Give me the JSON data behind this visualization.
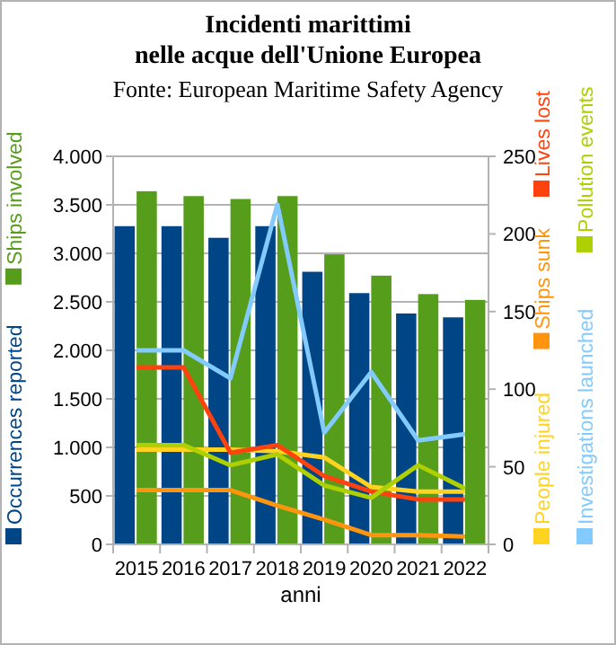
{
  "chart_data": {
    "type": "bar",
    "title": "Incidenti marittimi\nnelle acque dell'Unione Europea",
    "subtitle": "Fonte: European Maritime Safety Agency",
    "xlabel": "anni",
    "categories": [
      "2015",
      "2016",
      "2017",
      "2018",
      "2019",
      "2020",
      "2021",
      "2022"
    ],
    "series": [
      {
        "name": "Occurrences reported",
        "color": "#004586",
        "values": [
          3280,
          3280,
          3160,
          3280,
          2810,
          2590,
          2380,
          2340
        ]
      },
      {
        "name": "Ships involved",
        "color": "#579d1c",
        "values": [
          3640,
          3590,
          3560,
          3590,
          2990,
          2770,
          2580,
          2520
        ]
      },
      {
        "name": "People injured",
        "type": "line",
        "axis": "y2",
        "color": "#ffd320",
        "values": [
          61,
          61,
          61,
          60,
          56,
          37,
          34,
          34
        ]
      },
      {
        "name": "Ships sunk",
        "type": "line",
        "axis": "y2",
        "color": "#ff950e",
        "values": [
          35,
          35,
          35,
          25,
          16,
          6,
          6,
          5
        ]
      },
      {
        "name": "Lives lost",
        "type": "line",
        "axis": "y2",
        "color": "#ff420e",
        "values": [
          114,
          114,
          59,
          64,
          44,
          34,
          29,
          29
        ]
      },
      {
        "name": "Investigations launched",
        "type": "line",
        "axis": "y2",
        "color": "#83caff",
        "values": [
          125,
          125,
          107,
          219,
          72,
          111,
          67,
          71
        ]
      },
      {
        "name": "Pollution events",
        "type": "line",
        "axis": "y2",
        "color": "#aecf00",
        "values": [
          64,
          64,
          51,
          58,
          38,
          30,
          51,
          36
        ]
      }
    ],
    "ylim": [
      0,
      4000
    ],
    "yticks": [
      {
        "value": 0,
        "label": "0"
      },
      {
        "value": 500,
        "label": "500"
      },
      {
        "value": 1000,
        "label": "1.000"
      },
      {
        "value": 1500,
        "label": "1.500"
      },
      {
        "value": 2000,
        "label": "2.000"
      },
      {
        "value": 2500,
        "label": "2.500"
      },
      {
        "value": 3000,
        "label": "3.000"
      },
      {
        "value": 3500,
        "label": "3.500"
      },
      {
        "value": 4000,
        "label": "4.000"
      }
    ],
    "y2lim": [
      0,
      250
    ],
    "y2ticks": [
      0,
      50,
      100,
      150,
      200,
      250
    ],
    "grid": "y",
    "legend": "right",
    "marker": "none",
    "line_style": "solid"
  }
}
